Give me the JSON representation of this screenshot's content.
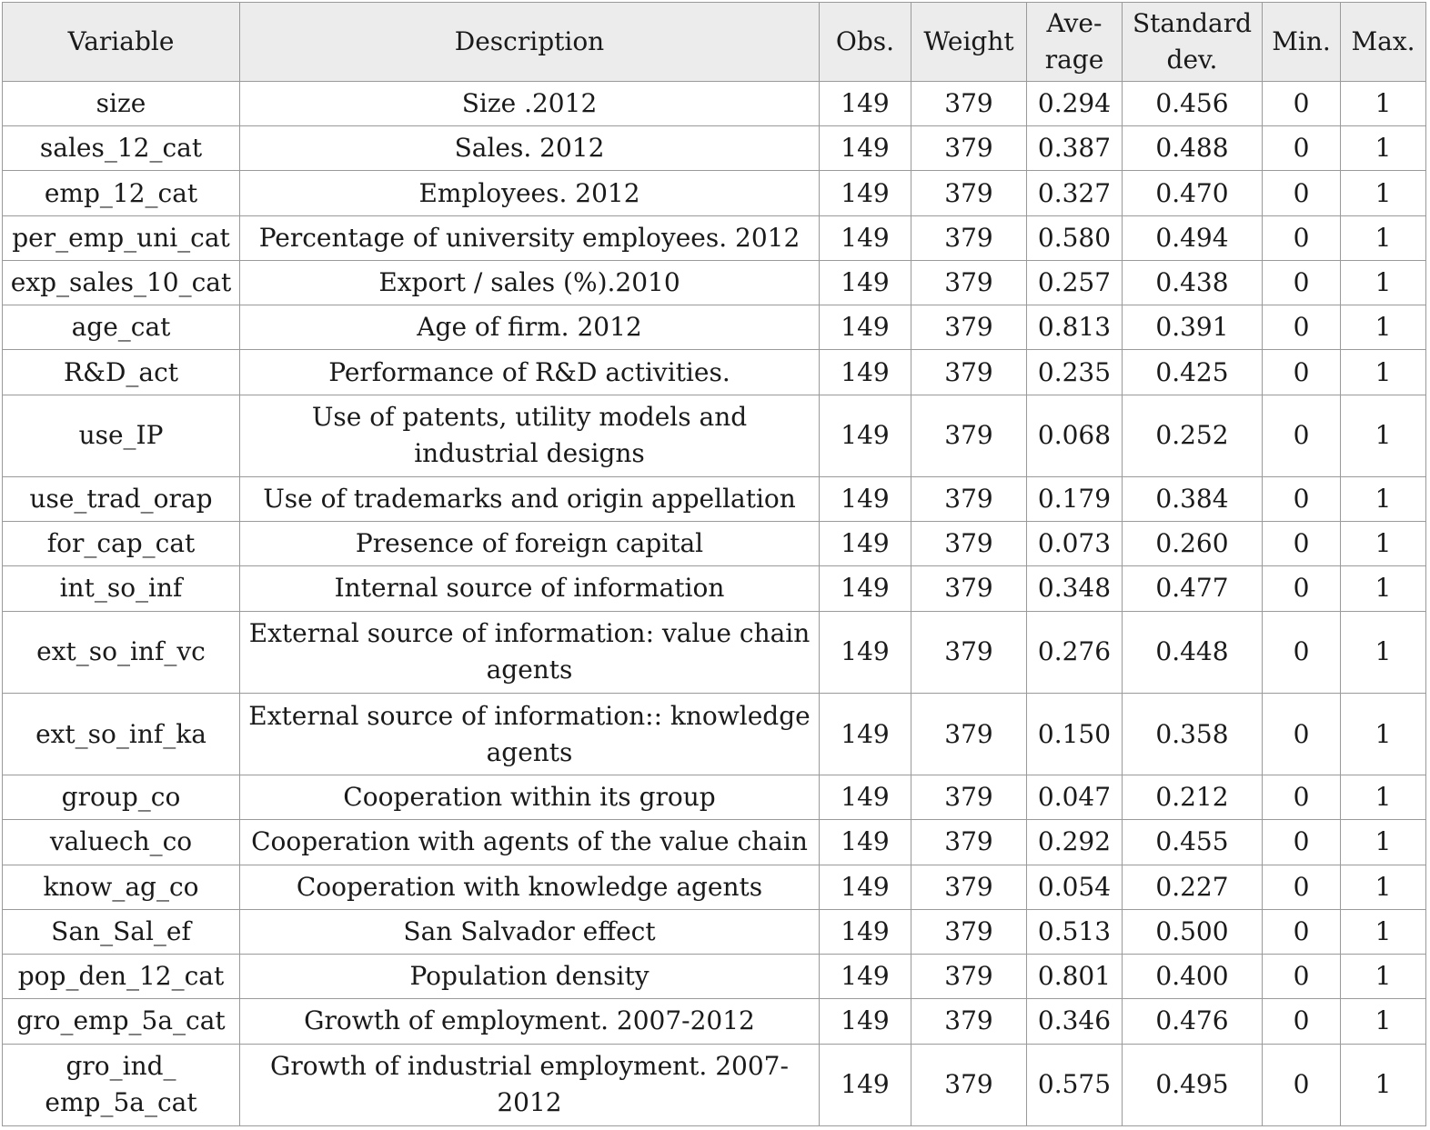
{
  "table": {
    "headers": {
      "variable": "Variable",
      "description": "Description",
      "obs": "Obs.",
      "weight": "Weight",
      "average_line1": "Ave-",
      "average_line2": "rage",
      "std_line1": "Standard",
      "std_line2": "dev.",
      "min": "Min.",
      "max": "Max."
    },
    "rows": [
      {
        "variable": [
          "size"
        ],
        "description": [
          "Size .2012"
        ],
        "obs": "149",
        "weight": "379",
        "average": "0.294",
        "std": "0.456",
        "min": "0",
        "max": "1"
      },
      {
        "variable": [
          "sales_12_cat"
        ],
        "description": [
          "Sales. 2012"
        ],
        "obs": "149",
        "weight": "379",
        "average": "0.387",
        "std": "0.488",
        "min": "0",
        "max": "1"
      },
      {
        "variable": [
          "emp_12_cat"
        ],
        "description": [
          "Employees. 2012"
        ],
        "obs": "149",
        "weight": "379",
        "average": "0.327",
        "std": "0.470",
        "min": "0",
        "max": "1"
      },
      {
        "variable": [
          "per_emp_uni_cat"
        ],
        "description": [
          "Percentage of university employees. 2012"
        ],
        "obs": "149",
        "weight": "379",
        "average": "0.580",
        "std": "0.494",
        "min": "0",
        "max": "1"
      },
      {
        "variable": [
          "exp_sales_10_cat"
        ],
        "description": [
          "Export / sales (%).2010"
        ],
        "obs": "149",
        "weight": "379",
        "average": "0.257",
        "std": "0.438",
        "min": "0",
        "max": "1"
      },
      {
        "variable": [
          "age_cat"
        ],
        "description": [
          "Age of firm. 2012"
        ],
        "obs": "149",
        "weight": "379",
        "average": "0.813",
        "std": "0.391",
        "min": "0",
        "max": "1"
      },
      {
        "variable": [
          "R&D_act"
        ],
        "description": [
          "Performance of R&D activities."
        ],
        "obs": "149",
        "weight": "379",
        "average": "0.235",
        "std": "0.425",
        "min": "0",
        "max": "1"
      },
      {
        "variable": [
          "use_IP"
        ],
        "description": [
          "Use of patents, utility models and",
          "industrial designs"
        ],
        "obs": "149",
        "weight": "379",
        "average": "0.068",
        "std": "0.252",
        "min": "0",
        "max": "1"
      },
      {
        "variable": [
          "use_trad_orap"
        ],
        "description": [
          "Use of trademarks and origin appellation"
        ],
        "obs": "149",
        "weight": "379",
        "average": "0.179",
        "std": "0.384",
        "min": "0",
        "max": "1"
      },
      {
        "variable": [
          "for_cap_cat"
        ],
        "description": [
          "Presence of foreign capital"
        ],
        "obs": "149",
        "weight": "379",
        "average": "0.073",
        "std": "0.260",
        "min": "0",
        "max": "1"
      },
      {
        "variable": [
          "int_so_inf"
        ],
        "description": [
          "Internal source of information"
        ],
        "obs": "149",
        "weight": "379",
        "average": "0.348",
        "std": "0.477",
        "min": "0",
        "max": "1"
      },
      {
        "variable": [
          "ext_so_inf_vc"
        ],
        "description": [
          "External source of information: value chain",
          "agents"
        ],
        "obs": "149",
        "weight": "379",
        "average": "0.276",
        "std": "0.448",
        "min": "0",
        "max": "1"
      },
      {
        "variable": [
          "ext_so_inf_ka"
        ],
        "description": [
          "External source of information:: knowledge",
          "agents"
        ],
        "obs": "149",
        "weight": "379",
        "average": "0.150",
        "std": "0.358",
        "min": "0",
        "max": "1"
      },
      {
        "variable": [
          "group_co"
        ],
        "description": [
          "Cooperation within its group"
        ],
        "obs": "149",
        "weight": "379",
        "average": "0.047",
        "std": "0.212",
        "min": "0",
        "max": "1"
      },
      {
        "variable": [
          "valuech_co"
        ],
        "description": [
          "Cooperation with agents of the value chain"
        ],
        "obs": "149",
        "weight": "379",
        "average": "0.292",
        "std": "0.455",
        "min": "0",
        "max": "1"
      },
      {
        "variable": [
          "know_ag_co"
        ],
        "description": [
          "Cooperation with knowledge agents"
        ],
        "obs": "149",
        "weight": "379",
        "average": "0.054",
        "std": "0.227",
        "min": "0",
        "max": "1"
      },
      {
        "variable": [
          "San_Sal_ef"
        ],
        "description": [
          "San Salvador effect"
        ],
        "obs": "149",
        "weight": "379",
        "average": "0.513",
        "std": "0.500",
        "min": "0",
        "max": "1"
      },
      {
        "variable": [
          "pop_den_12_cat"
        ],
        "description": [
          "Population density"
        ],
        "obs": "149",
        "weight": "379",
        "average": "0.801",
        "std": "0.400",
        "min": "0",
        "max": "1"
      },
      {
        "variable": [
          "gro_emp_5a_cat"
        ],
        "description": [
          "Growth of employment. 2007-2012"
        ],
        "obs": "149",
        "weight": "379",
        "average": "0.346",
        "std": "0.476",
        "min": "0",
        "max": "1"
      },
      {
        "variable": [
          "gro_ind_",
          "emp_5a_cat"
        ],
        "description": [
          "Growth of industrial employment. 2007-",
          "2012"
        ],
        "obs": "149",
        "weight": "379",
        "average": "0.575",
        "std": "0.495",
        "min": "0",
        "max": "1"
      }
    ]
  }
}
